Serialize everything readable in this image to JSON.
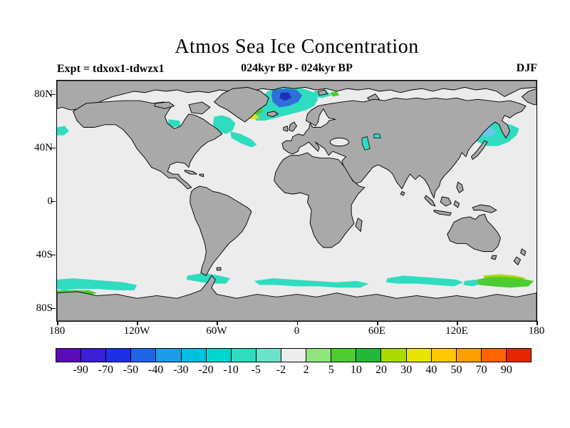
{
  "page": {
    "background": "#ffffff"
  },
  "header": {
    "title": "Atmos Sea Ice Concentration",
    "experiment_label": "Expt = tdxox1-tdwzx1",
    "period_label": "024kyr BP - 024kyr BP",
    "season_label": "DJF"
  },
  "map": {
    "colors": {
      "ocean": "#ececec",
      "land": "#a9a9a9",
      "coast": "#000000",
      "cyan": "#30dcc0",
      "sky": "#6cc6ea",
      "blue": "#2f6fd9",
      "dark_blue": "#1f2fb8",
      "green": "#4ecb33",
      "yellow_green": "#aada00",
      "yellow": "#e8e400"
    }
  },
  "chart_data": {
    "type": "heatmap",
    "title": "Atmos Sea Ice Concentration",
    "subtitle": "024kyr BP - 024kyr BP",
    "experiment": "tdxox1-tdwzx1",
    "season": "DJF",
    "projection": "equirectangular world map, gray land, anomalies shaded over ocean",
    "x_axis": {
      "label": "",
      "tick_labels": [
        "180",
        "120W",
        "60W",
        "0",
        "60E",
        "120E",
        "180"
      ],
      "range_deg": [
        -180,
        180
      ]
    },
    "y_axis": {
      "label": "",
      "tick_labels": [
        "80N",
        "40N",
        "0",
        "40S",
        "80S"
      ],
      "range_deg": [
        -90,
        90
      ]
    },
    "colorbar": {
      "tick_labels": [
        "-90",
        "-70",
        "-50",
        "-40",
        "-30",
        "-20",
        "-10",
        "-5",
        "-2",
        "2",
        "5",
        "10",
        "20",
        "30",
        "40",
        "50",
        "70",
        "90"
      ],
      "levels": [
        -90,
        -70,
        -50,
        -40,
        -30,
        -20,
        -10,
        -5,
        -2,
        2,
        5,
        10,
        20,
        30,
        40,
        50,
        70,
        90
      ],
      "segment_colors": [
        "#5b0bb5",
        "#3a1fd6",
        "#1f2fe6",
        "#1f66e6",
        "#1f9ce8",
        "#00c0e0",
        "#00d6cd",
        "#30dcc0",
        "#6ce2ca",
        "#ececec",
        "#90e47c",
        "#4ecb33",
        "#22b93a",
        "#aada00",
        "#e8e400",
        "#ffc800",
        "#ff9e00",
        "#ff6400",
        "#e62500"
      ]
    },
    "anomaly_regions": [
      {
        "region": "Norwegian-Greenland Sea",
        "sign": "negative",
        "approx_values": "-40 to -10 with core near -50"
      },
      {
        "region": "Iceland / SE Greenland coast",
        "sign": "positive",
        "approx_values": "10 to 30"
      },
      {
        "region": "Labrador Sea / NW Atlantic streak",
        "sign": "negative",
        "approx_values": "-10 to -2"
      },
      {
        "region": "Hudson Bay",
        "sign": "negative",
        "approx_values": "-10 to -2"
      },
      {
        "region": "Caspian and Aral region",
        "sign": "negative",
        "approx_values": "-10 to -2"
      },
      {
        "region": "Sea of Okhotsk / NW Pacific",
        "sign": "negative",
        "approx_values": "-20 to -2"
      },
      {
        "region": "Southern Ocean circumpolar band",
        "sign": "negative",
        "approx_values": "-10 to -2"
      },
      {
        "region": "Southern Ocean near 150E-180 (right edge)",
        "sign": "positive",
        "approx_values": "5 to 30"
      },
      {
        "region": "Southern Ocean near 180-150W (left edge)",
        "sign": "positive",
        "approx_values": "5 to 20"
      }
    ]
  }
}
